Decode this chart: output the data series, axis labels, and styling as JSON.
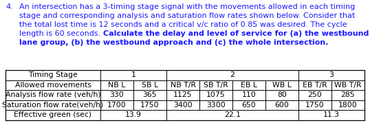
{
  "question_number": "4.",
  "line1": "An intersection has a 3-timing stage signal with the movements allowed in each timing",
  "line2": "stage and corresponding analysis and saturation flow rates shown below. Consider that",
  "line3": "the total lost time is 12 seconds and a critical v/c ratio of 0.85 was desired. The cycle",
  "line4_normal": "length is 60 seconds. ",
  "line4_bold": "Calculate the delay and level of service for (a) the westbound left",
  "line5_bold": "lane group, (b) the westbound approach and (c) the whole intersection.",
  "text_color": "#1a1aff",
  "text_fontsize": 8.0,
  "table_fontsize": 7.8,
  "row_labels": [
    "Timing Stage",
    "Allowed movements",
    "Analysis flow rate (veh/h)",
    "Saturation flow rate(veh/h)",
    "Effective green (sec)"
  ],
  "stage_headers": [
    "1",
    "2",
    "3"
  ],
  "movements": [
    "NB L",
    "SB L",
    "NB T/R",
    "SB T/R",
    "EB L",
    "WB L",
    "EB T/R",
    "WB T/R"
  ],
  "analysis_flow": [
    "330",
    "365",
    "1125",
    "1075",
    "110",
    "80",
    "250",
    "285"
  ],
  "saturation_flow": [
    "1700",
    "1750",
    "3400",
    "3300",
    "650",
    "600",
    "1750",
    "1800"
  ],
  "effective_green": [
    "13.9",
    "22.1",
    "11.3"
  ]
}
